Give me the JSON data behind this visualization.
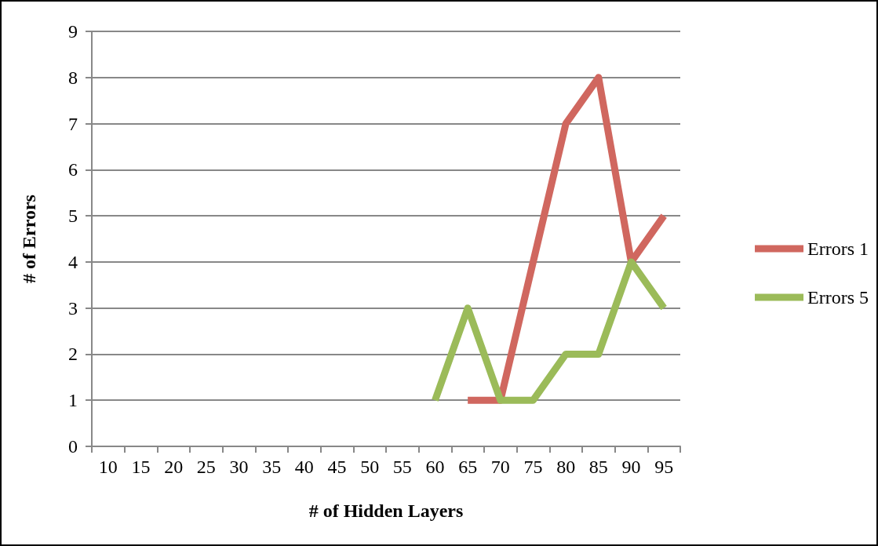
{
  "chart_data": {
    "type": "line",
    "xlabel": "# of Hidden Layers",
    "ylabel": "# of Errors",
    "categories": [
      "10",
      "15",
      "20",
      "25",
      "30",
      "35",
      "40",
      "45",
      "50",
      "55",
      "60",
      "65",
      "70",
      "75",
      "80",
      "85",
      "90",
      "95"
    ],
    "series": [
      {
        "name": "Errors 1",
        "color": "#d0675f",
        "values": [
          null,
          null,
          null,
          null,
          null,
          null,
          null,
          null,
          null,
          null,
          null,
          1,
          1,
          4,
          7,
          8,
          4,
          5
        ]
      },
      {
        "name": "Errors 5",
        "color": "#9bbb59",
        "values": [
          null,
          null,
          null,
          null,
          null,
          null,
          null,
          null,
          null,
          null,
          1,
          3,
          1,
          1,
          2,
          2,
          4,
          3
        ]
      }
    ],
    "ylim": [
      0,
      9
    ],
    "yticks": [
      0,
      1,
      2,
      3,
      4,
      5,
      6,
      7,
      8,
      9
    ],
    "grid": "y",
    "legend": "right",
    "marker": "none",
    "line_style": "solid"
  }
}
